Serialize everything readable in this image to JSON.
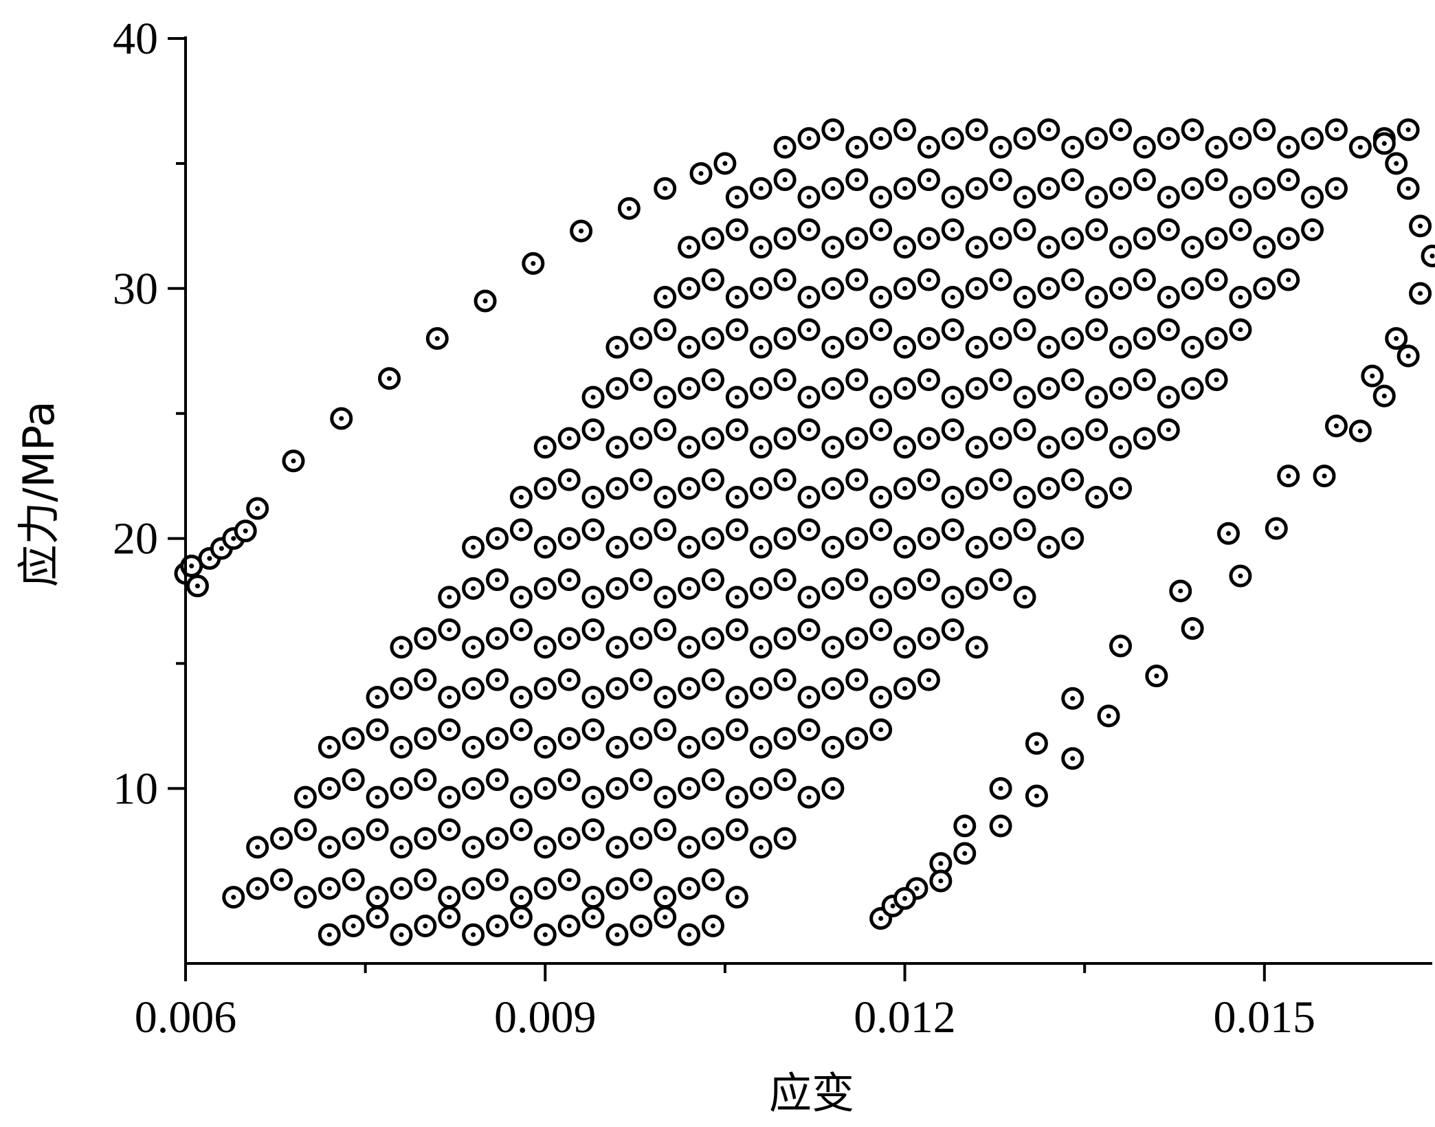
{
  "chart_data": {
    "type": "scatter",
    "title": "",
    "xlabel": "应变",
    "ylabel": "应力/MPa",
    "xlim": [
      0.006,
      0.0164
    ],
    "ylim": [
      3,
      40
    ],
    "x_ticks": [
      "0.006",
      "0.009",
      "0.012",
      "0.015"
    ],
    "x_tick_values": [
      0.006,
      0.009,
      0.012,
      0.015
    ],
    "x_minor_ticks": [
      0.0075,
      0.0105,
      0.0135
    ],
    "y_ticks": [
      "10",
      "20",
      "30",
      "40"
    ],
    "y_tick_values": [
      10,
      20,
      30,
      40
    ],
    "y_minor_ticks": [
      15,
      25,
      35
    ],
    "grid": false,
    "legend": "none",
    "marker": "circle with center dot",
    "colors": {
      "marker": "#000000",
      "background": "#ffffff"
    },
    "outlier_branch_left": [
      [
        0.006,
        18.6
      ],
      [
        0.00605,
        18.9
      ],
      [
        0.0061,
        18.1
      ],
      [
        0.0062,
        19.2
      ],
      [
        0.0063,
        19.6
      ],
      [
        0.0064,
        20.0
      ],
      [
        0.0065,
        20.3
      ],
      [
        0.0066,
        21.2
      ],
      [
        0.0069,
        23.1
      ],
      [
        0.0073,
        24.8
      ],
      [
        0.0077,
        26.4
      ],
      [
        0.0081,
        28.0
      ],
      [
        0.0085,
        29.5
      ],
      [
        0.0089,
        31.0
      ],
      [
        0.0093,
        32.3
      ],
      [
        0.0097,
        33.2
      ],
      [
        0.01,
        34.0
      ],
      [
        0.0103,
        34.6
      ],
      [
        0.0105,
        35.0
      ]
    ],
    "outlier_branch_right": [
      [
        0.0118,
        4.8
      ],
      [
        0.0119,
        5.3
      ],
      [
        0.0121,
        6.0
      ],
      [
        0.0123,
        7.0
      ],
      [
        0.0125,
        8.5
      ],
      [
        0.0128,
        10.0
      ],
      [
        0.0131,
        11.8
      ],
      [
        0.0134,
        13.6
      ],
      [
        0.0138,
        15.7
      ],
      [
        0.0143,
        17.9
      ],
      [
        0.0147,
        20.2
      ],
      [
        0.0152,
        22.5
      ],
      [
        0.0156,
        24.5
      ],
      [
        0.0159,
        26.5
      ],
      [
        0.0161,
        28.0
      ],
      [
        0.0163,
        29.8
      ],
      [
        0.0164,
        31.3
      ],
      [
        0.0163,
        32.5
      ],
      [
        0.0162,
        34.0
      ],
      [
        0.0161,
        35.0
      ],
      [
        0.016,
        35.8
      ],
      [
        0.012,
        5.6
      ],
      [
        0.0123,
        6.3
      ],
      [
        0.0125,
        7.4
      ],
      [
        0.0128,
        8.5
      ],
      [
        0.0131,
        9.7
      ],
      [
        0.0134,
        11.2
      ],
      [
        0.0137,
        12.9
      ],
      [
        0.0141,
        14.5
      ],
      [
        0.0144,
        16.4
      ],
      [
        0.0148,
        18.5
      ],
      [
        0.0151,
        20.4
      ],
      [
        0.0155,
        22.5
      ],
      [
        0.0158,
        24.3
      ],
      [
        0.016,
        25.7
      ],
      [
        0.0162,
        27.3
      ]
    ],
    "band_rows": [
      {
        "stress": 4.5,
        "strain": [
          0.0072,
          0.0074,
          0.0076,
          0.0078,
          0.008,
          0.0082,
          0.0084,
          0.0086,
          0.0088,
          0.009,
          0.0092,
          0.0094,
          0.0096,
          0.0098,
          0.01,
          0.0102,
          0.0104
        ]
      },
      {
        "stress": 6,
        "strain": [
          0.0064,
          0.0066,
          0.0068,
          0.007,
          0.0072,
          0.0074,
          0.0076,
          0.0078,
          0.008,
          0.0082,
          0.0084,
          0.0086,
          0.0088,
          0.009,
          0.0092,
          0.0094,
          0.0096,
          0.0098,
          0.01,
          0.0102,
          0.0104,
          0.0106
        ]
      },
      {
        "stress": 8,
        "strain": [
          0.0066,
          0.0068,
          0.007,
          0.0072,
          0.0074,
          0.0076,
          0.0078,
          0.008,
          0.0082,
          0.0084,
          0.0086,
          0.0088,
          0.009,
          0.0092,
          0.0094,
          0.0096,
          0.0098,
          0.01,
          0.0102,
          0.0104,
          0.0106,
          0.0108,
          0.011
        ]
      },
      {
        "stress": 10,
        "strain": [
          0.007,
          0.0072,
          0.0074,
          0.0076,
          0.0078,
          0.008,
          0.0082,
          0.0084,
          0.0086,
          0.0088,
          0.009,
          0.0092,
          0.0094,
          0.0096,
          0.0098,
          0.01,
          0.0102,
          0.0104,
          0.0106,
          0.0108,
          0.011,
          0.0112,
          0.0114
        ]
      },
      {
        "stress": 12,
        "strain": [
          0.0072,
          0.0074,
          0.0076,
          0.0078,
          0.008,
          0.0082,
          0.0084,
          0.0086,
          0.0088,
          0.009,
          0.0092,
          0.0094,
          0.0096,
          0.0098,
          0.01,
          0.0102,
          0.0104,
          0.0106,
          0.0108,
          0.011,
          0.0112,
          0.0114,
          0.0116,
          0.0118
        ]
      },
      {
        "stress": 14,
        "strain": [
          0.0076,
          0.0078,
          0.008,
          0.0082,
          0.0084,
          0.0086,
          0.0088,
          0.009,
          0.0092,
          0.0094,
          0.0096,
          0.0098,
          0.01,
          0.0102,
          0.0104,
          0.0106,
          0.0108,
          0.011,
          0.0112,
          0.0114,
          0.0116,
          0.0118,
          0.012,
          0.0122
        ]
      },
      {
        "stress": 16,
        "strain": [
          0.0078,
          0.008,
          0.0082,
          0.0084,
          0.0086,
          0.0088,
          0.009,
          0.0092,
          0.0094,
          0.0096,
          0.0098,
          0.01,
          0.0102,
          0.0104,
          0.0106,
          0.0108,
          0.011,
          0.0112,
          0.0114,
          0.0116,
          0.0118,
          0.012,
          0.0122,
          0.0124,
          0.0126
        ]
      },
      {
        "stress": 18,
        "strain": [
          0.0082,
          0.0084,
          0.0086,
          0.0088,
          0.009,
          0.0092,
          0.0094,
          0.0096,
          0.0098,
          0.01,
          0.0102,
          0.0104,
          0.0106,
          0.0108,
          0.011,
          0.0112,
          0.0114,
          0.0116,
          0.0118,
          0.012,
          0.0122,
          0.0124,
          0.0126,
          0.0128,
          0.013
        ]
      },
      {
        "stress": 20,
        "strain": [
          0.0084,
          0.0086,
          0.0088,
          0.009,
          0.0092,
          0.0094,
          0.0096,
          0.0098,
          0.01,
          0.0102,
          0.0104,
          0.0106,
          0.0108,
          0.011,
          0.0112,
          0.0114,
          0.0116,
          0.0118,
          0.012,
          0.0122,
          0.0124,
          0.0126,
          0.0128,
          0.013,
          0.0132,
          0.0134
        ]
      },
      {
        "stress": 22,
        "strain": [
          0.0088,
          0.009,
          0.0092,
          0.0094,
          0.0096,
          0.0098,
          0.01,
          0.0102,
          0.0104,
          0.0106,
          0.0108,
          0.011,
          0.0112,
          0.0114,
          0.0116,
          0.0118,
          0.012,
          0.0122,
          0.0124,
          0.0126,
          0.0128,
          0.013,
          0.0132,
          0.0134,
          0.0136,
          0.0138
        ]
      },
      {
        "stress": 24,
        "strain": [
          0.009,
          0.0092,
          0.0094,
          0.0096,
          0.0098,
          0.01,
          0.0102,
          0.0104,
          0.0106,
          0.0108,
          0.011,
          0.0112,
          0.0114,
          0.0116,
          0.0118,
          0.012,
          0.0122,
          0.0124,
          0.0126,
          0.0128,
          0.013,
          0.0132,
          0.0134,
          0.0136,
          0.0138,
          0.014,
          0.0142
        ]
      },
      {
        "stress": 26,
        "strain": [
          0.0094,
          0.0096,
          0.0098,
          0.01,
          0.0102,
          0.0104,
          0.0106,
          0.0108,
          0.011,
          0.0112,
          0.0114,
          0.0116,
          0.0118,
          0.012,
          0.0122,
          0.0124,
          0.0126,
          0.0128,
          0.013,
          0.0132,
          0.0134,
          0.0136,
          0.0138,
          0.014,
          0.0142,
          0.0144,
          0.0146
        ]
      },
      {
        "stress": 28,
        "strain": [
          0.0096,
          0.0098,
          0.01,
          0.0102,
          0.0104,
          0.0106,
          0.0108,
          0.011,
          0.0112,
          0.0114,
          0.0116,
          0.0118,
          0.012,
          0.0122,
          0.0124,
          0.0126,
          0.0128,
          0.013,
          0.0132,
          0.0134,
          0.0136,
          0.0138,
          0.014,
          0.0142,
          0.0144,
          0.0146,
          0.0148
        ]
      },
      {
        "stress": 30,
        "strain": [
          0.01,
          0.0102,
          0.0104,
          0.0106,
          0.0108,
          0.011,
          0.0112,
          0.0114,
          0.0116,
          0.0118,
          0.012,
          0.0122,
          0.0124,
          0.0126,
          0.0128,
          0.013,
          0.0132,
          0.0134,
          0.0136,
          0.0138,
          0.014,
          0.0142,
          0.0144,
          0.0146,
          0.0148,
          0.015,
          0.0152
        ]
      },
      {
        "stress": 32,
        "strain": [
          0.0102,
          0.0104,
          0.0106,
          0.0108,
          0.011,
          0.0112,
          0.0114,
          0.0116,
          0.0118,
          0.012,
          0.0122,
          0.0124,
          0.0126,
          0.0128,
          0.013,
          0.0132,
          0.0134,
          0.0136,
          0.0138,
          0.014,
          0.0142,
          0.0144,
          0.0146,
          0.0148,
          0.015,
          0.0152,
          0.0154
        ]
      },
      {
        "stress": 34,
        "strain": [
          0.0106,
          0.0108,
          0.011,
          0.0112,
          0.0114,
          0.0116,
          0.0118,
          0.012,
          0.0122,
          0.0124,
          0.0126,
          0.0128,
          0.013,
          0.0132,
          0.0134,
          0.0136,
          0.0138,
          0.014,
          0.0142,
          0.0144,
          0.0146,
          0.0148,
          0.015,
          0.0152,
          0.0154,
          0.0156
        ]
      },
      {
        "stress": 36,
        "strain": [
          0.011,
          0.0112,
          0.0114,
          0.0116,
          0.0118,
          0.012,
          0.0122,
          0.0124,
          0.0126,
          0.0128,
          0.013,
          0.0132,
          0.0134,
          0.0136,
          0.0138,
          0.014,
          0.0142,
          0.0144,
          0.0146,
          0.0148,
          0.015,
          0.0152,
          0.0154,
          0.0156,
          0.0158,
          0.016,
          0.0162
        ]
      }
    ]
  }
}
